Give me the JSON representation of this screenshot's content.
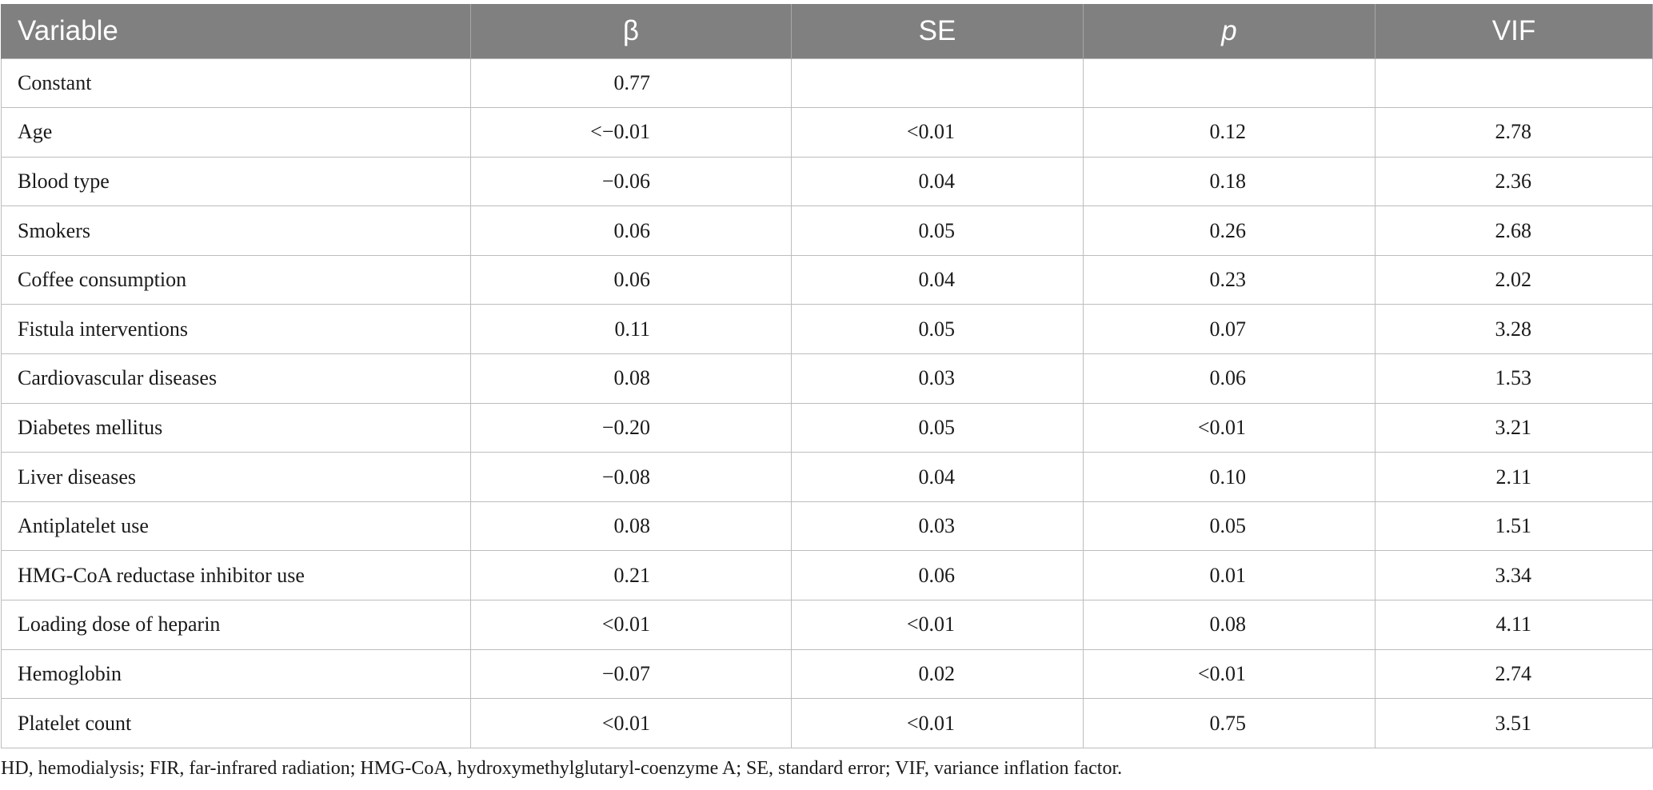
{
  "table": {
    "headers": [
      "Variable",
      "β",
      "SE",
      "p",
      "VIF"
    ],
    "rows": [
      {
        "variable": "Constant",
        "beta": "0.77",
        "se": "",
        "p": "",
        "vif": ""
      },
      {
        "variable": "Age",
        "beta": "<−0.01",
        "se": "<0.01",
        "p": "0.12",
        "vif": "2.78"
      },
      {
        "variable": "Blood type",
        "beta": "−0.06",
        "se": "0.04",
        "p": "0.18",
        "vif": "2.36"
      },
      {
        "variable": "Smokers",
        "beta": "0.06",
        "se": "0.05",
        "p": "0.26",
        "vif": "2.68"
      },
      {
        "variable": "Coffee consumption",
        "beta": "0.06",
        "se": "0.04",
        "p": "0.23",
        "vif": "2.02"
      },
      {
        "variable": "Fistula interventions",
        "beta": "0.11",
        "se": "0.05",
        "p": "0.07",
        "vif": "3.28"
      },
      {
        "variable": "Cardiovascular diseases",
        "beta": "0.08",
        "se": "0.03",
        "p": "0.06",
        "vif": "1.53"
      },
      {
        "variable": "Diabetes mellitus",
        "beta": "−0.20",
        "se": "0.05",
        "p": "<0.01",
        "vif": "3.21"
      },
      {
        "variable": "Liver diseases",
        "beta": "−0.08",
        "se": "0.04",
        "p": "0.10",
        "vif": "2.11"
      },
      {
        "variable": "Antiplatelet use",
        "beta": "0.08",
        "se": "0.03",
        "p": "0.05",
        "vif": "1.51"
      },
      {
        "variable": "HMG-CoA reductase inhibitor use",
        "beta": "0.21",
        "se": "0.06",
        "p": "0.01",
        "vif": "3.34"
      },
      {
        "variable": "Loading dose of heparin",
        "beta": "<0.01",
        "se": "<0.01",
        "p": "0.08",
        "vif": "4.11"
      },
      {
        "variable": "Hemoglobin",
        "beta": "−0.07",
        "se": "0.02",
        "p": "<0.01",
        "vif": "2.74"
      },
      {
        "variable": "Platelet count",
        "beta": "<0.01",
        "se": "<0.01",
        "p": "0.75",
        "vif": "3.51"
      }
    ]
  },
  "footnote": "HD, hemodialysis; FIR, far-infrared radiation; HMG-CoA, hydroxymethylglutaryl-coenzyme A; SE, standard error; VIF, variance inflation factor."
}
